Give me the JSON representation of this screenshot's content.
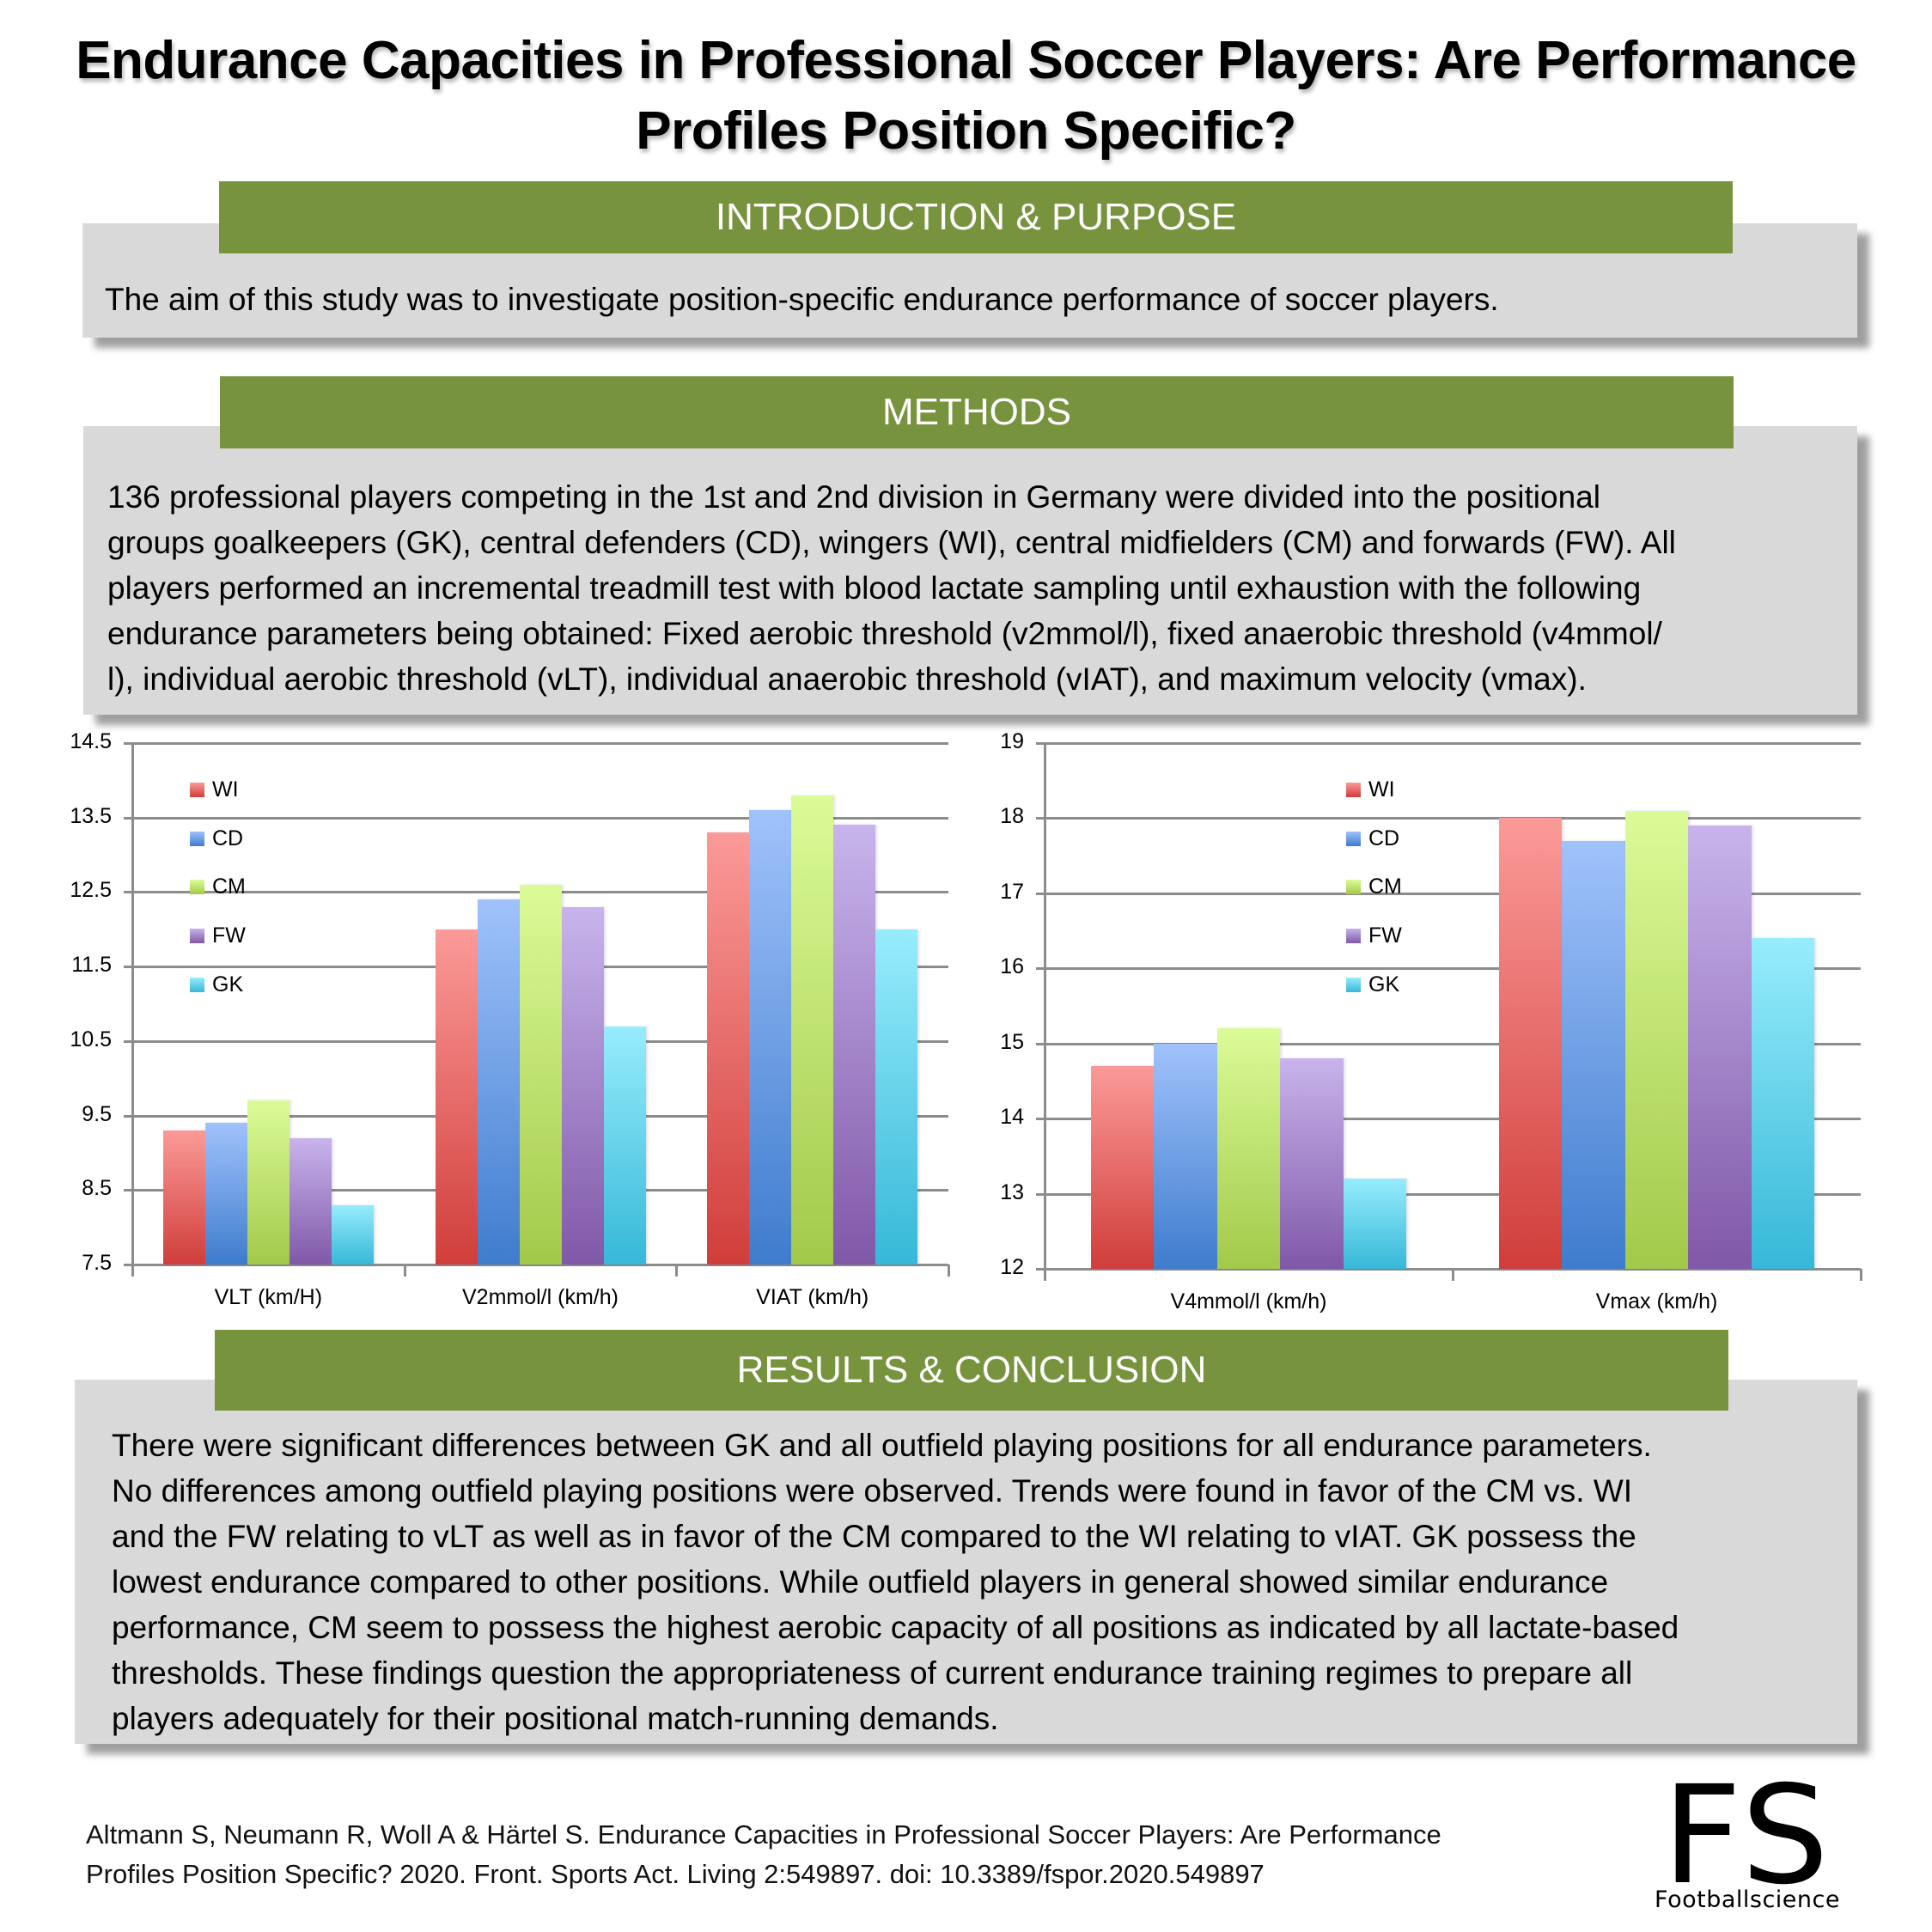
{
  "title": {
    "line1": "Endurance Capacities in Professional Soccer Players: Are Performance",
    "line2": "Profiles Position Specific?"
  },
  "sections": {
    "intro": {
      "heading": "INTRODUCTION & PURPOSE",
      "text": "The aim of this study was to investigate position-specific endurance performance of soccer players."
    },
    "methods": {
      "heading": "METHODS",
      "lines": [
        "136 professional players competing in the 1st and 2nd division in Germany were divided into the positional",
        "groups goalkeepers (GK), central defenders (CD), wingers (WI), central midfielders (CM) and forwards (FW). All",
        "players performed an incremental treadmill test with blood lactate sampling until exhaustion with the following",
        "endurance parameters being obtained: Fixed aerobic threshold (v2mmol/l), fixed  anaerobic threshold (v4mmol/",
        "l), individual aerobic threshold (vLT), individual anaerobic threshold (vIAT), and maximum velocity (vmax)."
      ]
    },
    "results": {
      "heading": "RESULTS & CONCLUSION",
      "lines": [
        "There were significant differences between GK and all outfield playing positions for all endurance parameters.",
        "No differences among outfield playing positions were observed. Trends were found in favor of the CM vs. WI",
        "and the FW relating to vLT as well as in favor of the CM compared to the WI relating to vIAT. GK possess the",
        "lowest endurance compared to other positions. While outfield players in general showed similar endurance",
        "performance, CM seem to possess the highest aerobic capacity of all positions as indicated by all lactate-based",
        "thresholds. These findings question the appropriateness of current endurance training regimes to prepare all",
        "players adequately for their positional match-running demands."
      ]
    }
  },
  "footer": {
    "citation_line1": "Altmann S, Neumann R, Woll A & Härtel S. Endurance Capacities in Professional Soccer Players: Are Performance",
    "citation_line2": "Profiles Position Specific? 2020. Front. Sports Act. Living 2:549897. doi: 10.3389/fspor.2020.549897",
    "logo_mark": "FS",
    "logo_text": "Footballscience"
  },
  "colors": {
    "section_header_green": "#78933d",
    "section_box_gray": "#d9d9d9",
    "WI": [
      "#fb9a98",
      "#d03e3b"
    ],
    "CD": [
      "#a0c2fb",
      "#3f7ccd"
    ],
    "CM": [
      "#dbfb98",
      "#a3c94a"
    ],
    "FW": [
      "#c8b4ec",
      "#8058a8"
    ],
    "GK": [
      "#97ecfc",
      "#36b8d8"
    ]
  },
  "chart_data": [
    {
      "type": "bar",
      "title": "",
      "xlabel": "",
      "ylabel": "",
      "categories": [
        "VLT (km/H)",
        "V2mmol/l (km/h)",
        "VIAT (km/h)"
      ],
      "series": [
        {
          "name": "WI",
          "values": [
            9.3,
            12.0,
            13.3
          ]
        },
        {
          "name": "CD",
          "values": [
            9.4,
            12.4,
            13.6
          ]
        },
        {
          "name": "CM",
          "values": [
            9.7,
            12.6,
            13.8
          ]
        },
        {
          "name": "FW",
          "values": [
            9.2,
            12.3,
            13.4
          ]
        },
        {
          "name": "GK",
          "values": [
            8.3,
            10.7,
            12.0
          ]
        }
      ],
      "ylim": [
        7.5,
        14.5
      ],
      "yticks": [
        "7.5",
        "8.5",
        "9.5",
        "10.5",
        "11.5",
        "12.5",
        "13.5",
        "14.5"
      ],
      "grid": true,
      "legend": [
        "WI",
        "CD",
        "CM",
        "FW",
        "GK"
      ],
      "legend_position": "upper-left"
    },
    {
      "type": "bar",
      "title": "",
      "xlabel": "",
      "ylabel": "",
      "categories": [
        "V4mmol/l (km/h)",
        "Vmax (km/h)"
      ],
      "series": [
        {
          "name": "WI",
          "values": [
            14.7,
            18.0
          ]
        },
        {
          "name": "CD",
          "values": [
            15.0,
            17.7
          ]
        },
        {
          "name": "CM",
          "values": [
            15.2,
            18.1
          ]
        },
        {
          "name": "FW",
          "values": [
            14.8,
            17.9
          ]
        },
        {
          "name": "GK",
          "values": [
            13.2,
            16.4
          ]
        }
      ],
      "ylim": [
        12,
        19
      ],
      "yticks": [
        "12",
        "13",
        "14",
        "15",
        "16",
        "17",
        "18",
        "19"
      ],
      "grid": true,
      "legend": [
        "WI",
        "CD",
        "CM",
        "FW",
        "GK"
      ],
      "legend_position": "upper-center"
    }
  ]
}
